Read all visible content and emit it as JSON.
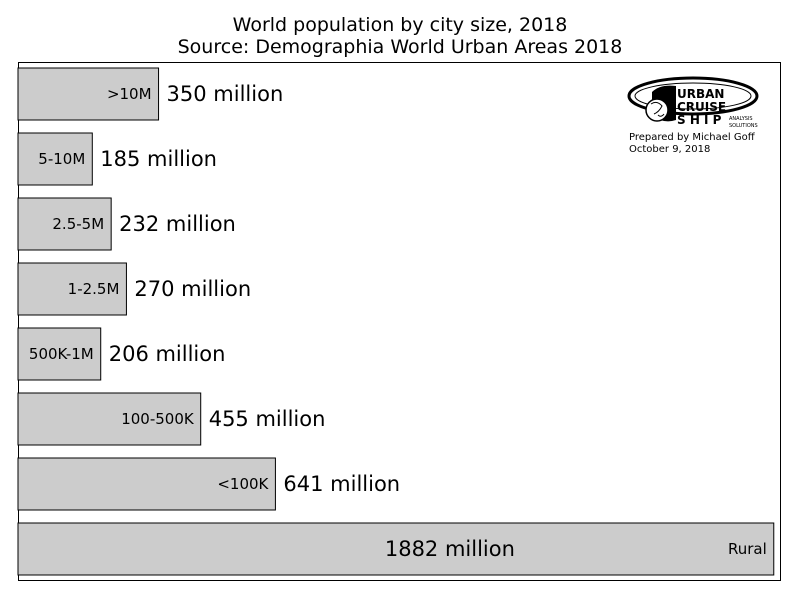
{
  "chart_data": {
    "type": "bar",
    "orientation": "horizontal",
    "title": "World population by city size, 2018",
    "subtitle": "Source: Demographia World Urban Areas 2018",
    "categories": [
      ">10M",
      "5-10M",
      "2.5-5M",
      "1-2.5M",
      "500K-1M",
      "100-500K",
      "<100K",
      "Rural"
    ],
    "values": [
      350,
      185,
      232,
      270,
      206,
      455,
      641,
      1882
    ],
    "value_labels": [
      "350 million",
      "185 million",
      "232 million",
      "270 million",
      "206 million",
      "455 million",
      "641 million",
      "1882 million"
    ],
    "xlim": [
      0,
      1900
    ],
    "grid": false,
    "bar_color": "#cccccc",
    "edge_color": "#000000"
  },
  "logo": {
    "line1": "URBAN",
    "line2": "CRUISE",
    "line3": "S H I P",
    "tag1": "ANALYSIS",
    "tag2": "SOLUTIONS",
    "icon": "globe-icon"
  },
  "credit": {
    "prepared_by": "Prepared by Michael Goff",
    "date": "October 9, 2018"
  }
}
